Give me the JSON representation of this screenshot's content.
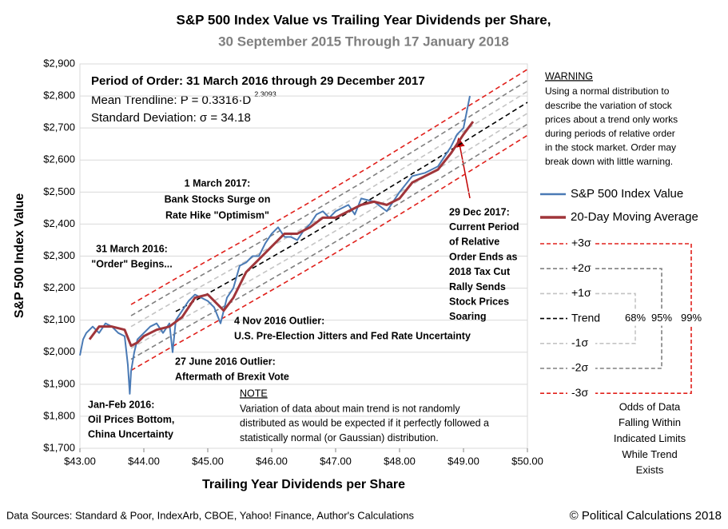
{
  "chart_data": {
    "type": "line",
    "title": "S&P 500 Index Value vs Trailing Year Dividends per Share,",
    "subtitle": "30 September 2015 Through 17 January 2018",
    "x_label": "Trailing Year Dividends per Share",
    "y_label": "S&P 500 Index Value",
    "xlim": [
      43,
      50
    ],
    "ylim": [
      1700,
      2900
    ],
    "xticks": [
      {
        "value": 43,
        "label": "$43.00"
      },
      {
        "value": 44,
        "label": "$44.00"
      },
      {
        "value": 45,
        "label": "$45.00"
      },
      {
        "value": 46,
        "label": "$46.00"
      },
      {
        "value": 47,
        "label": "$47.00"
      },
      {
        "value": 48,
        "label": "$48.00"
      },
      {
        "value": 49,
        "label": "$49.00"
      },
      {
        "value": 50,
        "label": "$50.00"
      }
    ],
    "yticks": [
      {
        "value": 1700,
        "label": "$1,700"
      },
      {
        "value": 1800,
        "label": "$1,800"
      },
      {
        "value": 1900,
        "label": "$1,900"
      },
      {
        "value": 2000,
        "label": "$2,000"
      },
      {
        "value": 2100,
        "label": "$2,100"
      },
      {
        "value": 2200,
        "label": "$2,200"
      },
      {
        "value": 2300,
        "label": "$2,300"
      },
      {
        "value": 2400,
        "label": "$2,400"
      },
      {
        "value": 2500,
        "label": "$2,500"
      },
      {
        "value": 2600,
        "label": "$2,600"
      },
      {
        "value": 2700,
        "label": "$2,700"
      },
      {
        "value": 2800,
        "label": "$2,800"
      },
      {
        "value": 2900,
        "label": "$2,900"
      }
    ],
    "series": [
      {
        "name": "S&P 500 Index Value",
        "color": "#4a7ab5",
        "width": 2,
        "x": [
          43.0,
          43.05,
          43.1,
          43.2,
          43.3,
          43.4,
          43.5,
          43.6,
          43.7,
          43.75,
          43.78,
          43.8,
          43.85,
          43.9,
          44.0,
          44.1,
          44.2,
          44.3,
          44.4,
          44.45,
          44.5,
          44.6,
          44.7,
          44.8,
          44.9,
          45.0,
          45.1,
          45.2,
          45.3,
          45.4,
          45.5,
          45.6,
          45.7,
          45.8,
          45.9,
          46.0,
          46.1,
          46.2,
          46.3,
          46.4,
          46.5,
          46.6,
          46.7,
          46.8,
          46.9,
          47.0,
          47.2,
          47.3,
          47.4,
          47.6,
          47.8,
          47.9,
          48.0,
          48.2,
          48.4,
          48.6,
          48.8,
          48.9,
          49.0,
          49.05,
          49.1
        ],
        "values": [
          1990,
          2040,
          2060,
          2080,
          2060,
          2090,
          2080,
          2060,
          2050,
          1960,
          1870,
          1940,
          2000,
          2040,
          2060,
          2080,
          2090,
          2060,
          2090,
          2000,
          2100,
          2130,
          2160,
          2180,
          2170,
          2160,
          2140,
          2090,
          2170,
          2200,
          2270,
          2280,
          2300,
          2300,
          2340,
          2370,
          2390,
          2360,
          2360,
          2350,
          2380,
          2400,
          2430,
          2440,
          2420,
          2440,
          2460,
          2430,
          2480,
          2470,
          2440,
          2470,
          2500,
          2550,
          2560,
          2580,
          2640,
          2680,
          2700,
          2750,
          2800
        ]
      },
      {
        "name": "20-Day Moving Average",
        "color": "#a0353a",
        "width": 3,
        "x": [
          43.15,
          43.3,
          43.5,
          43.7,
          43.8,
          43.9,
          44.0,
          44.2,
          44.4,
          44.6,
          44.8,
          45.0,
          45.1,
          45.25,
          45.4,
          45.6,
          45.8,
          46.0,
          46.2,
          46.4,
          46.6,
          46.8,
          47.0,
          47.2,
          47.4,
          47.6,
          47.8,
          48.0,
          48.2,
          48.4,
          48.6,
          48.8,
          49.0,
          49.15
        ],
        "values": [
          2040,
          2080,
          2080,
          2070,
          2020,
          2030,
          2050,
          2070,
          2080,
          2110,
          2170,
          2180,
          2160,
          2130,
          2170,
          2250,
          2290,
          2330,
          2370,
          2370,
          2390,
          2420,
          2420,
          2440,
          2460,
          2470,
          2460,
          2480,
          2530,
          2550,
          2570,
          2620,
          2680,
          2720
        ]
      },
      {
        "name": "+3σ",
        "color": "#e0201b",
        "dash": true,
        "x": [
          43.8,
          44.5,
          45.5,
          46.5,
          47.5,
          48.5,
          50
        ],
        "values": [
          2149,
          2230,
          2342,
          2457,
          2575,
          2697,
          2883
        ]
      },
      {
        "name": "+2σ",
        "color": "#808080",
        "dash": true,
        "x": [
          43.8,
          44.5,
          45.5,
          46.5,
          47.5,
          48.5,
          50
        ],
        "values": [
          2114,
          2195,
          2307,
          2422,
          2540,
          2662,
          2848
        ]
      },
      {
        "name": "+1σ",
        "color": "#c4c4c4",
        "dash": true,
        "x": [
          43.8,
          44.5,
          45.5,
          46.5,
          47.5,
          48.5,
          50
        ],
        "values": [
          2080,
          2161,
          2273,
          2388,
          2506,
          2628,
          2814
        ]
      },
      {
        "name": "Trend",
        "color": "#000000",
        "dash": true,
        "x": [
          44.5,
          45.5,
          46.5,
          47.5,
          48.5,
          50
        ],
        "values": [
          2127,
          2239,
          2354,
          2472,
          2594,
          2780
        ]
      },
      {
        "name": "-1σ",
        "color": "#c4c4c4",
        "dash": true,
        "x": [
          43.8,
          44.5,
          45.5,
          46.5,
          47.5,
          48.5,
          50
        ],
        "values": [
          2012,
          2093,
          2205,
          2320,
          2438,
          2560,
          2746
        ]
      },
      {
        "name": "-2σ",
        "color": "#808080",
        "dash": true,
        "x": [
          43.8,
          44.5,
          45.5,
          46.5,
          47.5,
          48.5,
          50
        ],
        "values": [
          1978,
          2059,
          2171,
          2286,
          2404,
          2526,
          2712
        ]
      },
      {
        "name": "-3σ",
        "color": "#e0201b",
        "dash": true,
        "x": [
          43.8,
          44.5,
          45.5,
          46.5,
          47.5,
          48.5,
          50
        ],
        "values": [
          1943,
          2024,
          2136,
          2251,
          2369,
          2491,
          2677
        ]
      }
    ],
    "stats_box": {
      "heading": "Period of Order: 31 March 2016 through 29 December 2017",
      "trendline": "Mean Trendline: P = 0.3316·D",
      "exponent": "2.3093",
      "std_dev": "Standard Deviation: σ = 34.18"
    },
    "annotations": [
      {
        "lines": [
          "1 March 2017:",
          "Bank Stocks Surge on",
          "Rate Hike \"Optimism\""
        ],
        "bold": true
      },
      {
        "lines": [
          "31 March 2016:",
          "\"Order\" Begins..."
        ],
        "bold": true
      },
      {
        "lines": [
          "4 Nov 2016  Outlier:",
          "U.S. Pre-Election Jitters and Fed Rate Uncertainty"
        ],
        "bold": true
      },
      {
        "lines": [
          "27 June 2016  Outlier:",
          "Aftermath of Brexit Vote"
        ],
        "bold": true
      },
      {
        "lines": [
          "Jan-Feb 2016:",
          "Oil Prices Bottom,",
          "China Uncertainty"
        ],
        "bold": true
      },
      {
        "lines": [
          "29 Dec 2017:",
          "Current Period",
          "of Relative",
          "Order Ends as",
          "2018 Tax Cut",
          "Rally Sends",
          "Stock Prices",
          "Soaring"
        ],
        "bold": true
      }
    ],
    "note": {
      "heading": "NOTE",
      "lines": [
        "Variation of data about main trend is not randomly",
        "distributed as would be expected if it perfectly followed a",
        "statistically normal (or Gaussian) distribution."
      ]
    },
    "warning": {
      "heading": "WARNING",
      "lines": [
        "Using a  normal distribution to",
        "describe the variation of stock",
        "prices about a trend only works",
        "during periods of relative order",
        "in the stock market.  Order may",
        "break down with little warning."
      ]
    },
    "odds_labels": [
      "68%",
      "95%",
      "99%"
    ],
    "odds_caption": [
      "Odds of Data",
      "Falling Within",
      "Indicated Limits",
      "While Trend",
      "Exists"
    ],
    "source": "Data Sources: Standard & Poor, IndexArb, CBOE, Yahoo! Finance, Author's Calculations",
    "copyright": "© Political Calculations 2018"
  }
}
